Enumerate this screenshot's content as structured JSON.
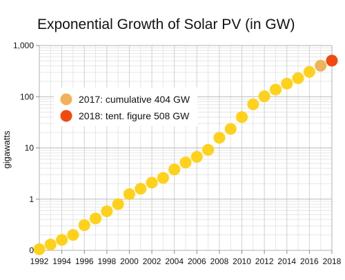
{
  "chart_data": {
    "type": "scatter",
    "title": "Exponential Growth of Solar PV (in GW)",
    "xlabel": "",
    "ylabel": "gigawatts",
    "y_scale": "log",
    "xlim": [
      1992,
      2018
    ],
    "ylim": [
      0.1,
      1000
    ],
    "x_ticks": [
      1992,
      1994,
      1996,
      1998,
      2000,
      2002,
      2004,
      2006,
      2008,
      2010,
      2012,
      2014,
      2016,
      2018
    ],
    "y_ticks": [
      {
        "value": 0.1,
        "label": "0"
      },
      {
        "value": 1,
        "label": "1"
      },
      {
        "value": 10,
        "label": "10"
      },
      {
        "value": 100,
        "label": "100"
      },
      {
        "value": 1000,
        "label": "1,000"
      }
    ],
    "grid": true,
    "legend_position": "left-middle",
    "legend": [
      {
        "label": "2017: cumulative 404 GW",
        "color": "#F0B35A"
      },
      {
        "label": "2018: tent. figure  508 GW",
        "color": "#F04A0E"
      }
    ],
    "series": [
      {
        "color": "#FFD11A",
        "points": [
          {
            "x": 1992,
            "y": 0.105
          },
          {
            "x": 1993,
            "y": 0.13
          },
          {
            "x": 1994,
            "y": 0.16
          },
          {
            "x": 1995,
            "y": 0.2
          },
          {
            "x": 1996,
            "y": 0.31
          },
          {
            "x": 1997,
            "y": 0.42
          },
          {
            "x": 1998,
            "y": 0.58
          },
          {
            "x": 1999,
            "y": 0.8
          },
          {
            "x": 2000,
            "y": 1.25
          },
          {
            "x": 2001,
            "y": 1.6
          },
          {
            "x": 2002,
            "y": 2.1
          },
          {
            "x": 2003,
            "y": 2.6
          },
          {
            "x": 2004,
            "y": 3.8
          },
          {
            "x": 2005,
            "y": 5.2
          },
          {
            "x": 2006,
            "y": 6.7
          },
          {
            "x": 2007,
            "y": 9.2
          },
          {
            "x": 2008,
            "y": 15.8
          },
          {
            "x": 2009,
            "y": 23.5
          },
          {
            "x": 2010,
            "y": 40
          },
          {
            "x": 2011,
            "y": 71
          },
          {
            "x": 2012,
            "y": 102
          },
          {
            "x": 2013,
            "y": 138
          },
          {
            "x": 2014,
            "y": 180
          },
          {
            "x": 2015,
            "y": 230
          },
          {
            "x": 2016,
            "y": 305
          }
        ]
      },
      {
        "color": "#F0B35A",
        "points": [
          {
            "x": 2017,
            "y": 404
          }
        ]
      },
      {
        "color": "#F04A0E",
        "points": [
          {
            "x": 2018,
            "y": 508
          }
        ]
      }
    ]
  }
}
